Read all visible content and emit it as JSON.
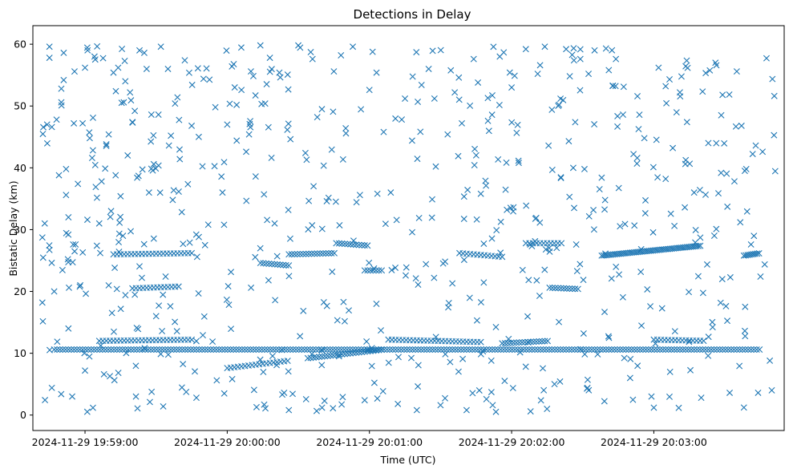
{
  "chart_data": {
    "type": "scatter",
    "title": "Detections in Delay",
    "xlabel": "Time (UTC)",
    "ylabel": "Bistatic Delay (km)",
    "marker": "x",
    "color": "#1f77b4",
    "grid": false,
    "xlim": [
      "2024-11-29 19:58:38",
      "2024-11-29 20:03:55"
    ],
    "ylim": [
      -2.5,
      63
    ],
    "xticks": [
      "2024-11-29 19:59:00",
      "2024-11-29 20:00:00",
      "2024-11-29 20:01:00",
      "2024-11-29 20:02:00",
      "2024-11-29 20:03:00"
    ],
    "yticks": [
      0,
      10,
      20,
      30,
      40,
      50,
      60
    ],
    "series": [
      {
        "x_start": "2024-11-29 19:58:42",
        "x_end": "2024-11-29 20:03:52",
        "points": [
          [
            "2024-11-29 19:58:42",
            18.2
          ],
          [
            "2024-11-29 19:58:43",
            31.0
          ],
          [
            "2024-11-29 19:58:44",
            47.0
          ],
          [
            "2024-11-29 19:58:45",
            59.6
          ],
          [
            "2024-11-29 19:58:45",
            57.8
          ],
          [
            "2024-11-29 19:58:46",
            46.6
          ],
          [
            "2024-11-29 19:58:46",
            4.4
          ],
          [
            "2024-11-29 19:58:47",
            20.0
          ],
          [
            "2024-11-29 19:58:48",
            47.8
          ],
          [
            "2024-11-29 19:58:49",
            38.8
          ],
          [
            "2024-11-29 19:58:50",
            52.8
          ],
          [
            "2024-11-29 19:58:50",
            50.6
          ],
          [
            "2024-11-29 19:58:51",
            54.2
          ],
          [
            "2024-11-29 19:58:51",
            58.6
          ],
          [
            "2024-11-29 19:58:52",
            39.8
          ],
          [
            "2024-11-29 19:58:52",
            35.6
          ],
          [
            "2024-11-29 19:58:53",
            32.0
          ],
          [
            "2024-11-29 19:58:53",
            14.0
          ],
          [
            "2024-11-29 19:58:55",
            27.6
          ],
          [
            "2024-11-29 19:58:56",
            27.6
          ],
          [
            "2024-11-29 19:58:57",
            37.4
          ],
          [
            "2024-11-29 19:58:58",
            21.0
          ],
          [
            "2024-11-29 19:58:59",
            47.2
          ],
          [
            "2024-11-29 19:59:00",
            56.2
          ],
          [
            "2024-11-29 19:59:00",
            7.2
          ],
          [
            "2024-11-29 19:59:01",
            31.6
          ],
          [
            "2024-11-29 19:59:02",
            44.8
          ],
          [
            "2024-11-29 19:59:03",
            41.6
          ],
          [
            "2024-11-29 19:59:04",
            58.0
          ],
          [
            "2024-11-29 19:59:05",
            27.4
          ],
          [
            "2024-11-29 19:59:06",
            31.0
          ],
          [
            "2024-11-29 19:59:07",
            37.8
          ],
          [
            "2024-11-29 19:59:08",
            6.6
          ],
          [
            "2024-11-29 19:59:09",
            43.8
          ],
          [
            "2024-11-29 19:59:10",
            45.4
          ],
          [
            "2024-11-29 19:59:11",
            33.0
          ],
          [
            "2024-11-29 19:59:12",
            55.4
          ],
          [
            "2024-11-29 19:59:13",
            52.4
          ],
          [
            "2024-11-29 19:59:14",
            56.2
          ],
          [
            "2024-11-29 19:59:15",
            35.4
          ],
          [
            "2024-11-29 19:59:16",
            29.0
          ],
          [
            "2024-11-29 19:59:17",
            54.0
          ],
          [
            "2024-11-29 19:59:18",
            42.0
          ],
          [
            "2024-11-29 19:59:19",
            52.2
          ],
          [
            "2024-11-29 19:59:20",
            47.4
          ],
          [
            "2024-11-29 19:59:21",
            49.2
          ],
          [
            "2024-11-29 19:59:22",
            38.4
          ],
          [
            "2024-11-29 19:59:23",
            59.0
          ],
          [
            "2024-11-29 19:59:24",
            22.2
          ],
          [
            "2024-11-29 19:59:25",
            58.6
          ],
          [
            "2024-11-29 19:59:26",
            56.0
          ],
          [
            "2024-11-29 19:59:27",
            36.0
          ],
          [
            "2024-11-29 19:59:28",
            48.6
          ],
          [
            "2024-11-29 19:59:29",
            40.6
          ],
          [
            "2024-11-29 19:59:30",
            16.0
          ],
          [
            "2024-11-29 19:59:31",
            48.6
          ],
          [
            "2024-11-29 19:59:32",
            59.6
          ],
          [
            "2024-11-29 19:59:33",
            1.4
          ],
          [
            "2024-11-29 19:59:34",
            22.4
          ],
          [
            "2024-11-29 19:59:35",
            56.0
          ],
          [
            "2024-11-29 19:59:36",
            17.6
          ],
          [
            "2024-11-29 19:59:37",
            34.8
          ],
          [
            "2024-11-29 19:59:38",
            50.4
          ],
          [
            "2024-11-29 19:59:39",
            51.4
          ],
          [
            "2024-11-29 19:59:40",
            41.4
          ],
          [
            "2024-11-29 19:59:45",
            46.8
          ],
          [
            "2024-11-29 19:59:47",
            2.8
          ],
          [
            "2024-11-29 19:59:48",
            45.0
          ],
          [
            "2024-11-29 19:59:50",
            54.4
          ],
          [
            "2024-11-29 19:59:52",
            30.8
          ],
          [
            "2024-11-29 19:59:55",
            49.8
          ],
          [
            "2024-11-29 19:59:58",
            36.0
          ],
          [
            "2024-11-29 20:00:00",
            47.0
          ],
          [
            "2024-11-29 20:00:02",
            56.4
          ],
          [
            "2024-11-29 20:00:04",
            44.4
          ],
          [
            "2024-11-29 20:00:06",
            52.6
          ],
          [
            "2024-11-29 20:00:08",
            42.6
          ],
          [
            "2024-11-29 20:00:10",
            55.6
          ],
          [
            "2024-11-29 20:00:12",
            38.6
          ],
          [
            "2024-11-29 20:00:14",
            59.8
          ],
          [
            "2024-11-29 20:00:16",
            50.4
          ],
          [
            "2024-11-29 20:00:18",
            57.8
          ],
          [
            "2024-11-29 20:00:20",
            31.0
          ],
          [
            "2024-11-29 20:00:22",
            55.4
          ],
          [
            "2024-11-29 20:00:24",
            3.6
          ],
          [
            "2024-11-29 20:00:26",
            0.8
          ],
          [
            "2024-11-29 20:00:30",
            59.8
          ],
          [
            "2024-11-29 20:00:33",
            42.4
          ],
          [
            "2024-11-29 20:00:36",
            57.6
          ],
          [
            "2024-11-29 20:00:38",
            48.2
          ],
          [
            "2024-11-29 20:00:40",
            1.2
          ],
          [
            "2024-11-29 20:00:42",
            34.6
          ],
          [
            "2024-11-29 20:00:45",
            55.6
          ],
          [
            "2024-11-29 20:00:48",
            58.2
          ],
          [
            "2024-11-29 20:00:50",
            46.4
          ],
          [
            "2024-11-29 20:00:53",
            59.6
          ],
          [
            "2024-11-29 20:00:56",
            35.6
          ],
          [
            "2024-11-29 20:00:58",
            2.4
          ],
          [
            "2024-11-29 20:01:00",
            52.6
          ],
          [
            "2024-11-29 20:01:03",
            55.4
          ],
          [
            "2024-11-29 20:01:06",
            45.8
          ],
          [
            "2024-11-29 20:01:09",
            36.0
          ],
          [
            "2024-11-29 20:01:12",
            1.8
          ],
          [
            "2024-11-29 20:01:15",
            51.2
          ],
          [
            "2024-11-29 20:01:18",
            44.4
          ],
          [
            "2024-11-29 20:01:20",
            0.8
          ],
          [
            "2024-11-29 20:01:22",
            53.4
          ],
          [
            "2024-11-29 20:01:25",
            56.0
          ],
          [
            "2024-11-29 20:01:28",
            40.2
          ],
          [
            "2024-11-29 20:01:30",
            1.6
          ],
          [
            "2024-11-29 20:01:33",
            45.4
          ],
          [
            "2024-11-29 20:01:36",
            52.2
          ],
          [
            "2024-11-29 20:01:39",
            47.2
          ],
          [
            "2024-11-29 20:01:41",
            0.8
          ],
          [
            "2024-11-29 20:01:44",
            57.6
          ],
          [
            "2024-11-29 20:01:47",
            35.8
          ],
          [
            "2024-11-29 20:01:50",
            47.6
          ],
          [
            "2024-11-29 20:01:52",
            1.6
          ],
          [
            "2024-11-29 20:01:55",
            58.0
          ],
          [
            "2024-11-29 20:01:58",
            33.2
          ],
          [
            "2024-11-29 20:02:00",
            53.0
          ],
          [
            "2024-11-29 20:02:03",
            40.8
          ],
          [
            "2024-11-29 20:02:06",
            59.2
          ],
          [
            "2024-11-29 20:02:08",
            0.6
          ],
          [
            "2024-11-29 20:02:11",
            55.2
          ],
          [
            "2024-11-29 20:02:14",
            59.6
          ],
          [
            "2024-11-29 20:02:17",
            49.4
          ],
          [
            "2024-11-29 20:02:20",
            50.2
          ],
          [
            "2024-11-29 20:02:23",
            59.2
          ],
          [
            "2024-11-29 20:02:26",
            40.0
          ],
          [
            "2024-11-29 20:02:29",
            57.6
          ],
          [
            "2024-11-29 20:02:32",
            4.4
          ],
          [
            "2024-11-29 20:02:35",
            59.0
          ],
          [
            "2024-11-29 20:02:38",
            38.4
          ],
          [
            "2024-11-29 20:02:41",
            55.8
          ],
          [
            "2024-11-29 20:02:44",
            57.6
          ],
          [
            "2024-11-29 20:02:47",
            48.6
          ],
          [
            "2024-11-29 20:02:50",
            6.0
          ],
          [
            "2024-11-29 20:02:53",
            41.6
          ],
          [
            "2024-11-29 20:02:56",
            44.8
          ],
          [
            "2024-11-29 20:02:59",
            3.0
          ],
          [
            "2024-11-29 20:03:00",
            1.2
          ],
          [
            "2024-11-29 20:03:02",
            56.2
          ],
          [
            "2024-11-29 20:03:05",
            53.2
          ],
          [
            "2024-11-29 20:03:08",
            43.2
          ],
          [
            "2024-11-29 20:03:11",
            52.2
          ],
          [
            "2024-11-29 20:03:14",
            47.4
          ],
          [
            "2024-11-29 20:03:17",
            36.0
          ],
          [
            "2024-11-29 20:03:20",
            2.8
          ],
          [
            "2024-11-29 20:03:23",
            44.0
          ],
          [
            "2024-11-29 20:03:26",
            57.0
          ],
          [
            "2024-11-29 20:03:29",
            51.8
          ],
          [
            "2024-11-29 20:03:32",
            3.6
          ],
          [
            "2024-11-29 20:03:35",
            55.6
          ],
          [
            "2024-11-29 20:03:37",
            46.8
          ],
          [
            "2024-11-29 20:03:39",
            39.8
          ],
          [
            "2024-11-29 20:03:41",
            27.6
          ],
          [
            "2024-11-29 20:03:43",
            43.6
          ],
          [
            "2024-11-29 20:03:44",
            3.6
          ],
          [
            "2024-11-29 20:03:45",
            22.4
          ]
        ],
        "tracks": [
          {
            "from": [
              "2024-11-29 19:58:47",
              10.6
            ],
            "to": [
              "2024-11-29 20:03:45",
              10.6
            ],
            "step_s": 1.2
          },
          {
            "from": [
              "2024-11-29 19:59:06",
              12.0
            ],
            "to": [
              "2024-11-29 19:59:46",
              12.2
            ],
            "step_s": 1.5
          },
          {
            "from": [
              "2024-11-29 19:59:12",
              26.0
            ],
            "to": [
              "2024-11-29 19:59:45",
              26.2
            ],
            "step_s": 1.5
          },
          {
            "from": [
              "2024-11-29 19:59:20",
              20.5
            ],
            "to": [
              "2024-11-29 19:59:40",
              20.8
            ],
            "step_s": 1.5
          },
          {
            "from": [
              "2024-11-29 20:00:00",
              7.6
            ],
            "to": [
              "2024-11-29 20:00:26",
              8.8
            ],
            "step_s": 1.5
          },
          {
            "from": [
              "2024-11-29 20:00:14",
              24.6
            ],
            "to": [
              "2024-11-29 20:00:26",
              24.2
            ],
            "step_s": 1.2
          },
          {
            "from": [
              "2024-11-29 20:00:26",
              26.0
            ],
            "to": [
              "2024-11-29 20:00:46",
              26.2
            ],
            "step_s": 1.2
          },
          {
            "from": [
              "2024-11-29 20:00:34",
              9.2
            ],
            "to": [
              "2024-11-29 20:01:06",
              10.6
            ],
            "step_s": 1.2
          },
          {
            "from": [
              "2024-11-29 20:00:46",
              27.8
            ],
            "to": [
              "2024-11-29 20:01:00",
              27.4
            ],
            "step_s": 1.2
          },
          {
            "from": [
              "2024-11-29 20:00:58",
              23.4
            ],
            "to": [
              "2024-11-29 20:01:06",
              23.4
            ],
            "step_s": 1.2
          },
          {
            "from": [
              "2024-11-29 20:01:08",
              12.2
            ],
            "to": [
              "2024-11-29 20:01:48",
              11.8
            ],
            "step_s": 1.5
          },
          {
            "from": [
              "2024-11-29 20:01:38",
              26.2
            ],
            "to": [
              "2024-11-29 20:01:56",
              25.6
            ],
            "step_s": 1.5
          },
          {
            "from": [
              "2024-11-29 20:01:56",
              11.6
            ],
            "to": [
              "2024-11-29 20:02:16",
              12.0
            ],
            "step_s": 1.2
          },
          {
            "from": [
              "2024-11-29 20:02:06",
              27.8
            ],
            "to": [
              "2024-11-29 20:02:22",
              27.8
            ],
            "step_s": 1.5
          },
          {
            "from": [
              "2024-11-29 20:02:16",
              20.6
            ],
            "to": [
              "2024-11-29 20:02:28",
              20.4
            ],
            "step_s": 1.2
          },
          {
            "from": [
              "2024-11-29 20:02:38",
              25.8
            ],
            "to": [
              "2024-11-29 20:03:20",
              27.4
            ],
            "step_s": 0.8
          },
          {
            "from": [
              "2024-11-29 20:03:00",
              12.2
            ],
            "to": [
              "2024-11-29 20:03:22",
              12.0
            ],
            "step_s": 1.5
          },
          {
            "from": [
              "2024-11-29 20:03:38",
              25.8
            ],
            "to": [
              "2024-11-29 20:03:45",
              26.2
            ],
            "step_s": 0.8
          }
        ],
        "noise": {
          "count": 520,
          "y_range": [
            0.5,
            59.8
          ],
          "seed": 7
        }
      }
    ]
  }
}
